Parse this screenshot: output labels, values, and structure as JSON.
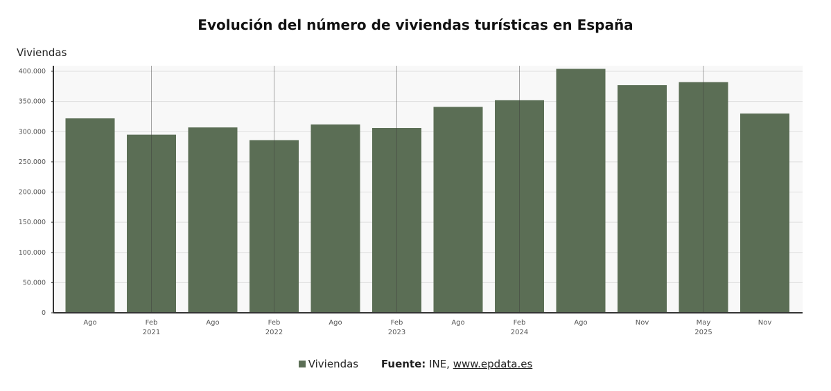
{
  "chart_data": {
    "type": "bar",
    "title": "Evolución del número de viviendas turísticas en España",
    "ylabel": "Viviendas",
    "ylim": [
      0,
      400000
    ],
    "yticks": [
      "0",
      "50.000",
      "100.000",
      "150.000",
      "200.000",
      "250.000",
      "300.000",
      "350.000",
      "400.000"
    ],
    "categories": [
      "Ago",
      "Feb",
      "Ago",
      "Feb",
      "Ago",
      "Feb",
      "Ago",
      "Feb",
      "Ago",
      "Nov",
      "May",
      "Nov"
    ],
    "years": [
      {
        "label": "2021",
        "at": 1
      },
      {
        "label": "2022",
        "at": 3
      },
      {
        "label": "2023",
        "at": 5
      },
      {
        "label": "2024",
        "at": 7
      },
      {
        "label": "2025",
        "at": 10
      }
    ],
    "series": [
      {
        "name": "Viviendas",
        "color": "#5b6e55",
        "values": [
          322000,
          295000,
          307000,
          286000,
          312000,
          306000,
          341000,
          352000,
          404000,
          377000,
          382000,
          330000
        ]
      }
    ],
    "grid": true,
    "legend_placement": "bottom"
  },
  "source": {
    "label": "Fuente:",
    "text": "INE, ",
    "link": "www.epdata.es"
  }
}
